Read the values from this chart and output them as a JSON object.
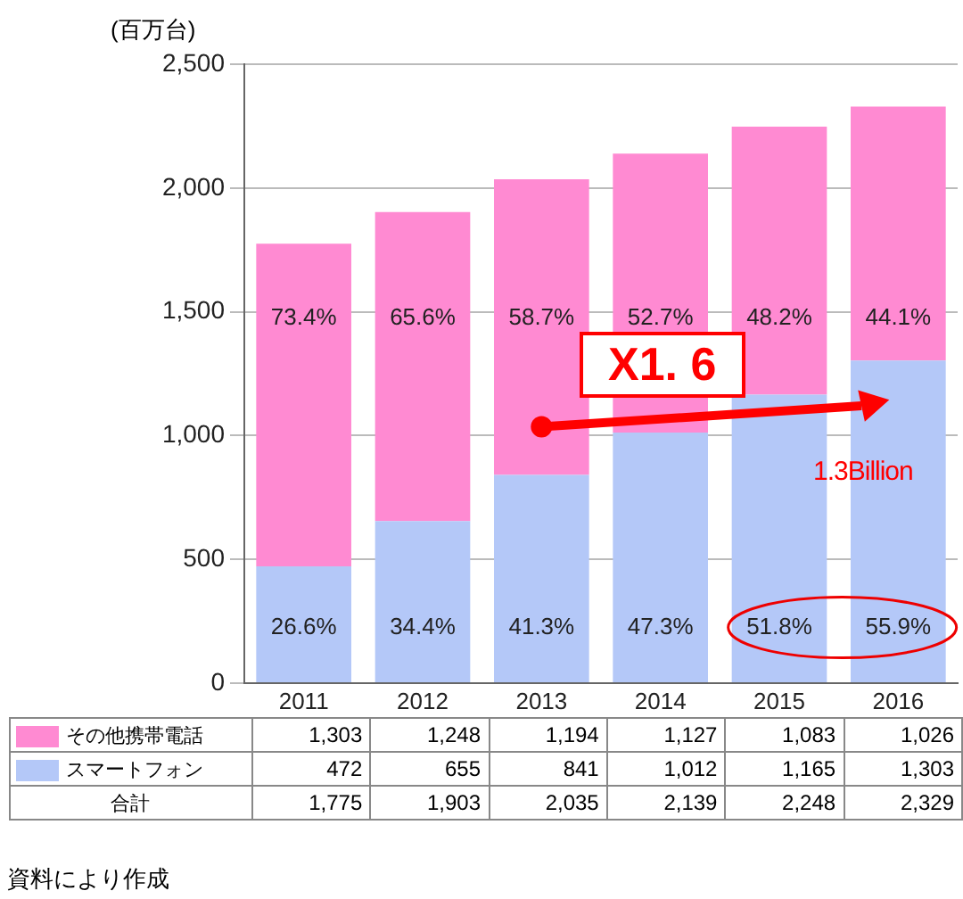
{
  "chart_data": {
    "type": "bar",
    "stacked": true,
    "ylabel": "(百万台)",
    "categories": [
      "2011",
      "2012",
      "2013",
      "2014",
      "2015",
      "2016"
    ],
    "series": [
      {
        "name": "スマートフォン",
        "color": "#b4c8f8",
        "values": [
          472,
          655,
          841,
          1012,
          1165,
          1303
        ],
        "value_labels": [
          "472",
          "655",
          "841",
          "1,012",
          "1,165",
          "1,303"
        ]
      },
      {
        "name": "その他携帯電話",
        "color": "#ff8ad2",
        "values": [
          1303,
          1248,
          1194,
          1127,
          1083,
          1026
        ],
        "value_labels": [
          "1,303",
          "1,248",
          "1,194",
          "1,127",
          "1,083",
          "1,026"
        ]
      }
    ],
    "ylim": [
      0,
      2500
    ],
    "yticks": [
      {
        "value": 0,
        "label": "0"
      },
      {
        "value": 500,
        "label": "500"
      },
      {
        "value": 1000,
        "label": "1,000"
      },
      {
        "value": 1500,
        "label": "1,500"
      },
      {
        "value": 2000,
        "label": "2,000"
      },
      {
        "value": 2500,
        "label": "2,500"
      }
    ],
    "grid": "y",
    "legend": "bottom",
    "annotations": [
      "X1. 6",
      "1.3Billion",
      "合計",
      "資料により作成",
      "1,775",
      "1,903",
      "2,035",
      "2,139",
      "2,248",
      "2,329",
      "73.4%",
      "65.6%",
      "58.7%",
      "52.7%",
      "48.2%",
      "44.1%",
      "26.6%",
      "34.4%",
      "41.3%",
      "47.3%",
      "51.8%",
      "55.9%"
    ]
  }
}
